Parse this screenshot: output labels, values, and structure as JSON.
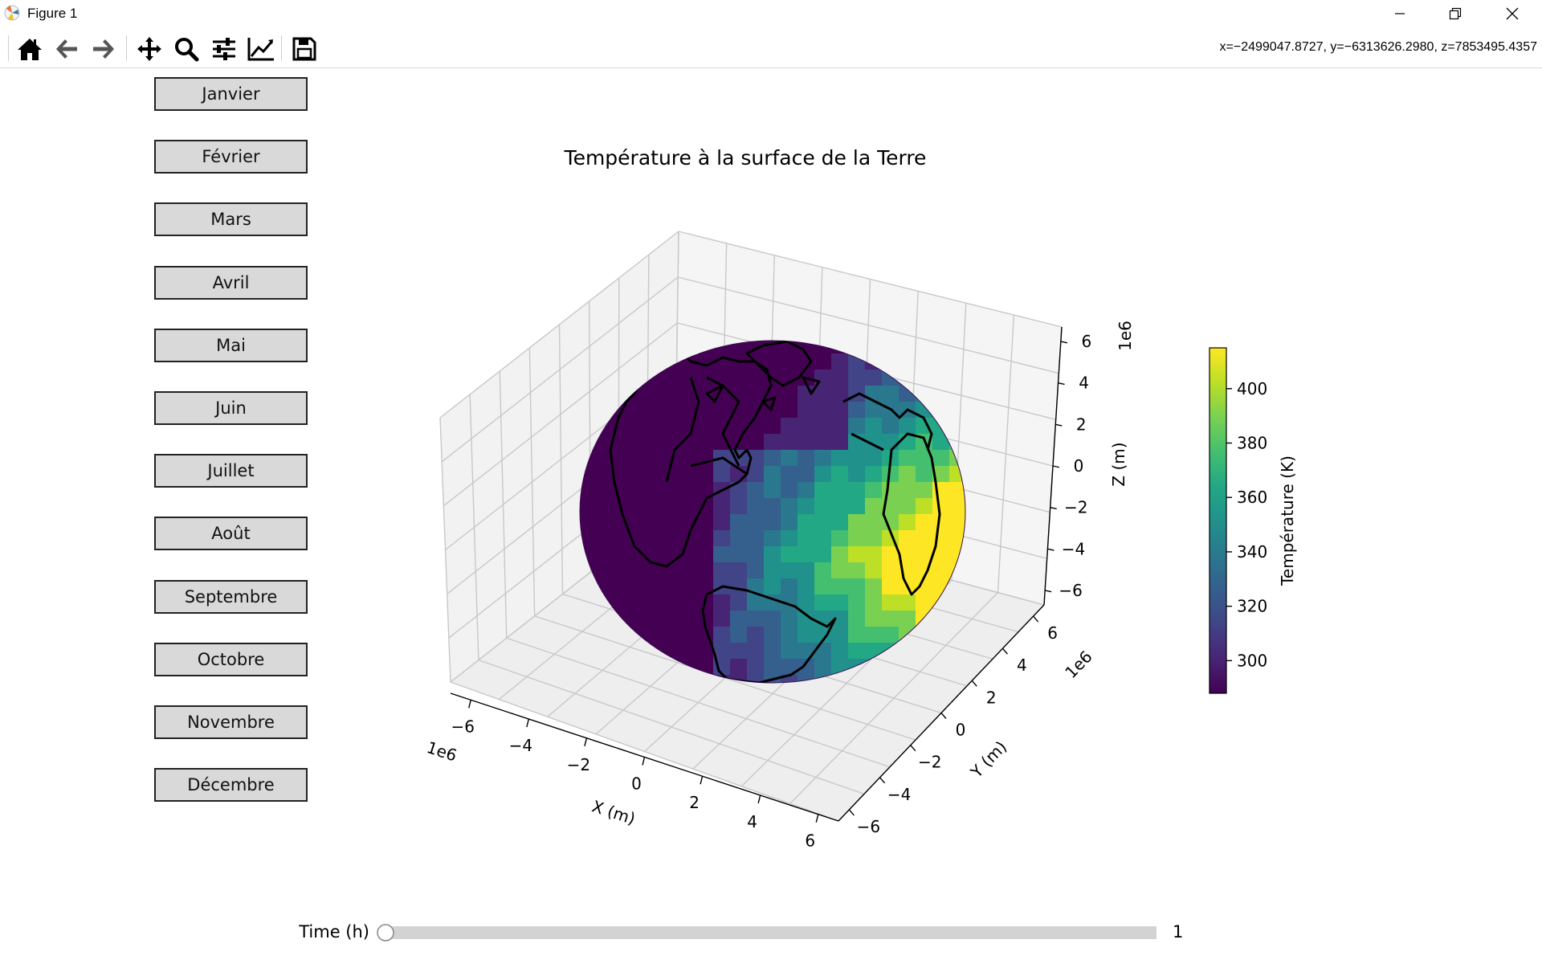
{
  "window": {
    "title": "Figure 1"
  },
  "toolbar": {
    "buttons": [
      "home-icon",
      "back-arrow-icon",
      "forward-arrow-icon",
      "pan-icon",
      "zoom-icon",
      "configure-subplots-icon",
      "edit-axes-icon",
      "save-icon"
    ],
    "coords": "x=−2499047.8727, y=−6313626.2980, z=7853495.4357"
  },
  "months": [
    "Janvier",
    "Février",
    "Mars",
    "Avril",
    "Mai",
    "Juin",
    "Juillet",
    "Août",
    "Septembre",
    "Octobre",
    "Novembre",
    "Décembre"
  ],
  "plot": {
    "title": "Température à la surface de la Terre",
    "xlabel": "X (m)",
    "ylabel": "Y (m)",
    "zlabel": "Z (m)",
    "offset": "1e6",
    "x_ticks": [
      "−6",
      "−4",
      "−2",
      "0",
      "2",
      "4",
      "6"
    ],
    "y_ticks": [
      "−6",
      "−4",
      "−2",
      "0",
      "2",
      "4",
      "6"
    ],
    "z_ticks": [
      "−6",
      "−4",
      "−2",
      "0",
      "2",
      "4",
      "6"
    ],
    "colormap": "viridis"
  },
  "colorbar": {
    "label": "Température (K)",
    "ticks": [
      "300",
      "320",
      "340",
      "360",
      "380",
      "400"
    ],
    "range": [
      288,
      415
    ]
  },
  "slider": {
    "label": "Time (h)",
    "value": "1",
    "fraction": 0.0
  }
}
